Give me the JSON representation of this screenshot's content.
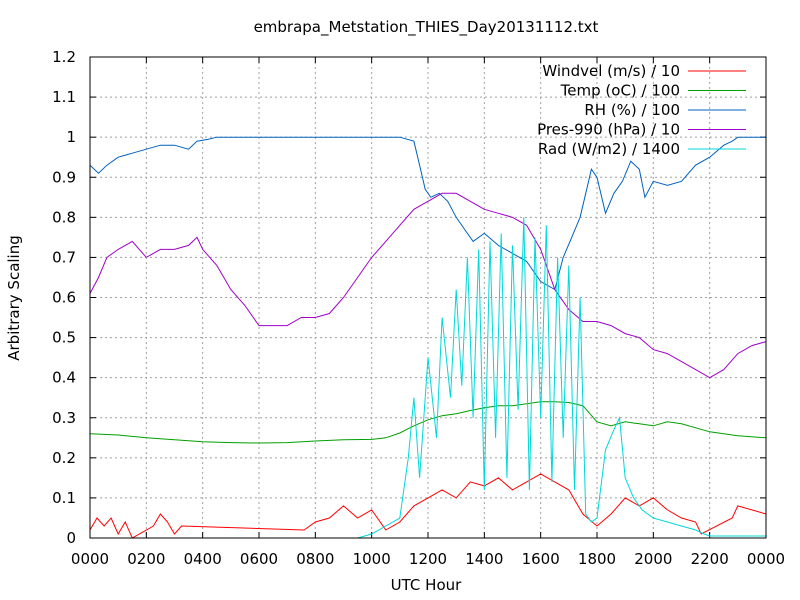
{
  "chart_data": {
    "type": "line",
    "title": "embrapa_Metstation_THIES_Day20131112.txt",
    "xlabel": "UTC Hour",
    "ylabel": "Arbitrary Scaling",
    "xlim": [
      0,
      24
    ],
    "ylim": [
      0,
      1.2
    ],
    "x_ticks": [
      {
        "value": 0,
        "label": "0000"
      },
      {
        "value": 2,
        "label": "0200"
      },
      {
        "value": 4,
        "label": "0400"
      },
      {
        "value": 6,
        "label": "0600"
      },
      {
        "value": 8,
        "label": "0800"
      },
      {
        "value": 10,
        "label": "1000"
      },
      {
        "value": 12,
        "label": "1200"
      },
      {
        "value": 14,
        "label": "1400"
      },
      {
        "value": 16,
        "label": "1600"
      },
      {
        "value": 18,
        "label": "1800"
      },
      {
        "value": 20,
        "label": "2000"
      },
      {
        "value": 22,
        "label": "2200"
      },
      {
        "value": 24,
        "label": "0000"
      }
    ],
    "y_ticks": [
      {
        "value": 0,
        "label": "0"
      },
      {
        "value": 0.1,
        "label": "0.1"
      },
      {
        "value": 0.2,
        "label": "0.2"
      },
      {
        "value": 0.3,
        "label": "0.3"
      },
      {
        "value": 0.4,
        "label": "0.4"
      },
      {
        "value": 0.5,
        "label": "0.5"
      },
      {
        "value": 0.6,
        "label": "0.6"
      },
      {
        "value": 0.7,
        "label": "0.7"
      },
      {
        "value": 0.8,
        "label": "0.8"
      },
      {
        "value": 0.9,
        "label": "0.9"
      },
      {
        "value": 1.0,
        "label": "1"
      },
      {
        "value": 1.1,
        "label": "1.1"
      },
      {
        "value": 1.2,
        "label": "1.2"
      }
    ],
    "grid": true,
    "legend_position": "top-right",
    "series": [
      {
        "name": "Windvel (m/s) / 10",
        "color": "#ff0000",
        "x": [
          0.0,
          0.25,
          0.5,
          0.75,
          1.0,
          1.25,
          1.5,
          2.25,
          2.5,
          2.75,
          3.0,
          3.25,
          7.6,
          8.0,
          8.5,
          9.0,
          9.5,
          10.0,
          10.5,
          11.0,
          11.5,
          12.0,
          12.5,
          13.0,
          13.5,
          14.0,
          14.5,
          15.0,
          15.5,
          16.0,
          16.5,
          17.0,
          17.5,
          18.0,
          18.5,
          19.0,
          19.5,
          20.0,
          20.5,
          21.0,
          21.5,
          21.7,
          22.8,
          23.0,
          23.5,
          24.0
        ],
        "y": [
          0.02,
          0.05,
          0.03,
          0.05,
          0.01,
          0.04,
          0.0,
          0.03,
          0.06,
          0.04,
          0.01,
          0.03,
          0.02,
          0.04,
          0.05,
          0.08,
          0.05,
          0.07,
          0.02,
          0.04,
          0.08,
          0.1,
          0.12,
          0.1,
          0.14,
          0.13,
          0.15,
          0.12,
          0.14,
          0.16,
          0.14,
          0.12,
          0.06,
          0.03,
          0.06,
          0.1,
          0.08,
          0.1,
          0.07,
          0.05,
          0.04,
          0.01,
          0.05,
          0.08,
          0.07,
          0.06
        ]
      },
      {
        "name": "Temp (oC) / 100",
        "color": "#00a000",
        "x": [
          0,
          1,
          2,
          3,
          4,
          5,
          6,
          7,
          8,
          9,
          10,
          10.5,
          11,
          11.5,
          12,
          12.5,
          13,
          13.5,
          14,
          14.5,
          15,
          15.5,
          16,
          16.5,
          17,
          17.5,
          18,
          18.5,
          19,
          19.5,
          20,
          20.5,
          21,
          22,
          23,
          24
        ],
        "y": [
          0.26,
          0.257,
          0.25,
          0.245,
          0.24,
          0.238,
          0.237,
          0.238,
          0.242,
          0.245,
          0.246,
          0.25,
          0.262,
          0.28,
          0.295,
          0.305,
          0.31,
          0.318,
          0.325,
          0.33,
          0.33,
          0.335,
          0.34,
          0.34,
          0.338,
          0.33,
          0.29,
          0.28,
          0.29,
          0.285,
          0.28,
          0.29,
          0.285,
          0.265,
          0.255,
          0.25
        ]
      },
      {
        "name": "RH (%) / 100",
        "color": "#0060c0",
        "x": [
          0,
          0.3,
          0.6,
          1,
          1.5,
          2,
          2.5,
          3,
          3.5,
          3.8,
          4.2,
          4.5,
          5,
          6,
          7,
          8,
          9,
          10,
          11,
          11.5,
          11.7,
          11.9,
          12.1,
          12.4,
          12.7,
          13,
          13.3,
          13.6,
          14,
          14.5,
          15,
          15.5,
          16,
          16.5,
          16.8,
          17.1,
          17.4,
          17.8,
          18,
          18.3,
          18.6,
          18.9,
          19.2,
          19.5,
          19.7,
          20,
          20.5,
          21,
          21.5,
          22,
          22.5,
          22.8,
          23,
          23.5,
          24
        ],
        "y": [
          0.93,
          0.91,
          0.93,
          0.95,
          0.96,
          0.97,
          0.98,
          0.98,
          0.97,
          0.99,
          0.995,
          1.0,
          1.0,
          1.0,
          1.0,
          1.0,
          1.0,
          1.0,
          1.0,
          0.99,
          0.93,
          0.87,
          0.85,
          0.86,
          0.84,
          0.8,
          0.77,
          0.74,
          0.76,
          0.73,
          0.71,
          0.69,
          0.64,
          0.62,
          0.7,
          0.75,
          0.8,
          0.92,
          0.9,
          0.81,
          0.86,
          0.89,
          0.94,
          0.92,
          0.85,
          0.89,
          0.88,
          0.89,
          0.93,
          0.95,
          0.98,
          0.99,
          1.0,
          1.0,
          1.0
        ]
      },
      {
        "name": "Pres-990 (hPa) / 10",
        "color": "#a000c8",
        "x": [
          0,
          0.3,
          0.6,
          1,
          1.5,
          2,
          2.5,
          3,
          3.5,
          3.8,
          4,
          4.5,
          5,
          5.5,
          6,
          6.5,
          7,
          7.5,
          8,
          8.5,
          9,
          9.5,
          10,
          10.5,
          11,
          11.5,
          12,
          12.5,
          13,
          13.5,
          14,
          14.5,
          15,
          15.5,
          16,
          16.5,
          17,
          17.5,
          18,
          18.5,
          19,
          19.5,
          20,
          20.5,
          21,
          21.5,
          22,
          22.5,
          23,
          23.5,
          24
        ],
        "y": [
          0.61,
          0.65,
          0.7,
          0.72,
          0.74,
          0.7,
          0.72,
          0.72,
          0.73,
          0.75,
          0.72,
          0.68,
          0.62,
          0.58,
          0.53,
          0.53,
          0.53,
          0.55,
          0.55,
          0.56,
          0.6,
          0.65,
          0.7,
          0.74,
          0.78,
          0.82,
          0.84,
          0.86,
          0.86,
          0.84,
          0.82,
          0.81,
          0.8,
          0.78,
          0.72,
          0.62,
          0.57,
          0.54,
          0.54,
          0.53,
          0.51,
          0.5,
          0.47,
          0.46,
          0.44,
          0.42,
          0.4,
          0.42,
          0.46,
          0.48,
          0.49
        ]
      },
      {
        "name": "Rad (W/m2) / 1400",
        "color": "#00d8d8",
        "x": [
          0,
          9.5,
          10.0,
          10.5,
          11.0,
          11.3,
          11.5,
          11.7,
          12.0,
          12.3,
          12.5,
          12.8,
          13.0,
          13.2,
          13.4,
          13.6,
          13.8,
          14.0,
          14.2,
          14.4,
          14.6,
          14.8,
          15.0,
          15.2,
          15.4,
          15.6,
          15.8,
          16.0,
          16.2,
          16.4,
          16.6,
          16.8,
          17.0,
          17.2,
          17.4,
          17.6,
          17.8,
          18.0,
          18.3,
          18.6,
          18.8,
          19.0,
          19.3,
          19.6,
          19.8,
          20.0,
          20.5,
          21.0,
          21.5,
          21.8,
          22,
          24
        ],
        "y": [
          0.0,
          0.0,
          0.01,
          0.03,
          0.05,
          0.2,
          0.35,
          0.15,
          0.45,
          0.25,
          0.55,
          0.35,
          0.62,
          0.38,
          0.7,
          0.3,
          0.72,
          0.12,
          0.74,
          0.25,
          0.76,
          0.15,
          0.73,
          0.32,
          0.8,
          0.12,
          0.75,
          0.3,
          0.78,
          0.14,
          0.7,
          0.25,
          0.68,
          0.12,
          0.6,
          0.06,
          0.04,
          0.05,
          0.22,
          0.27,
          0.3,
          0.15,
          0.1,
          0.07,
          0.06,
          0.05,
          0.04,
          0.03,
          0.02,
          0.01,
          0.005,
          0.005
        ]
      }
    ]
  }
}
